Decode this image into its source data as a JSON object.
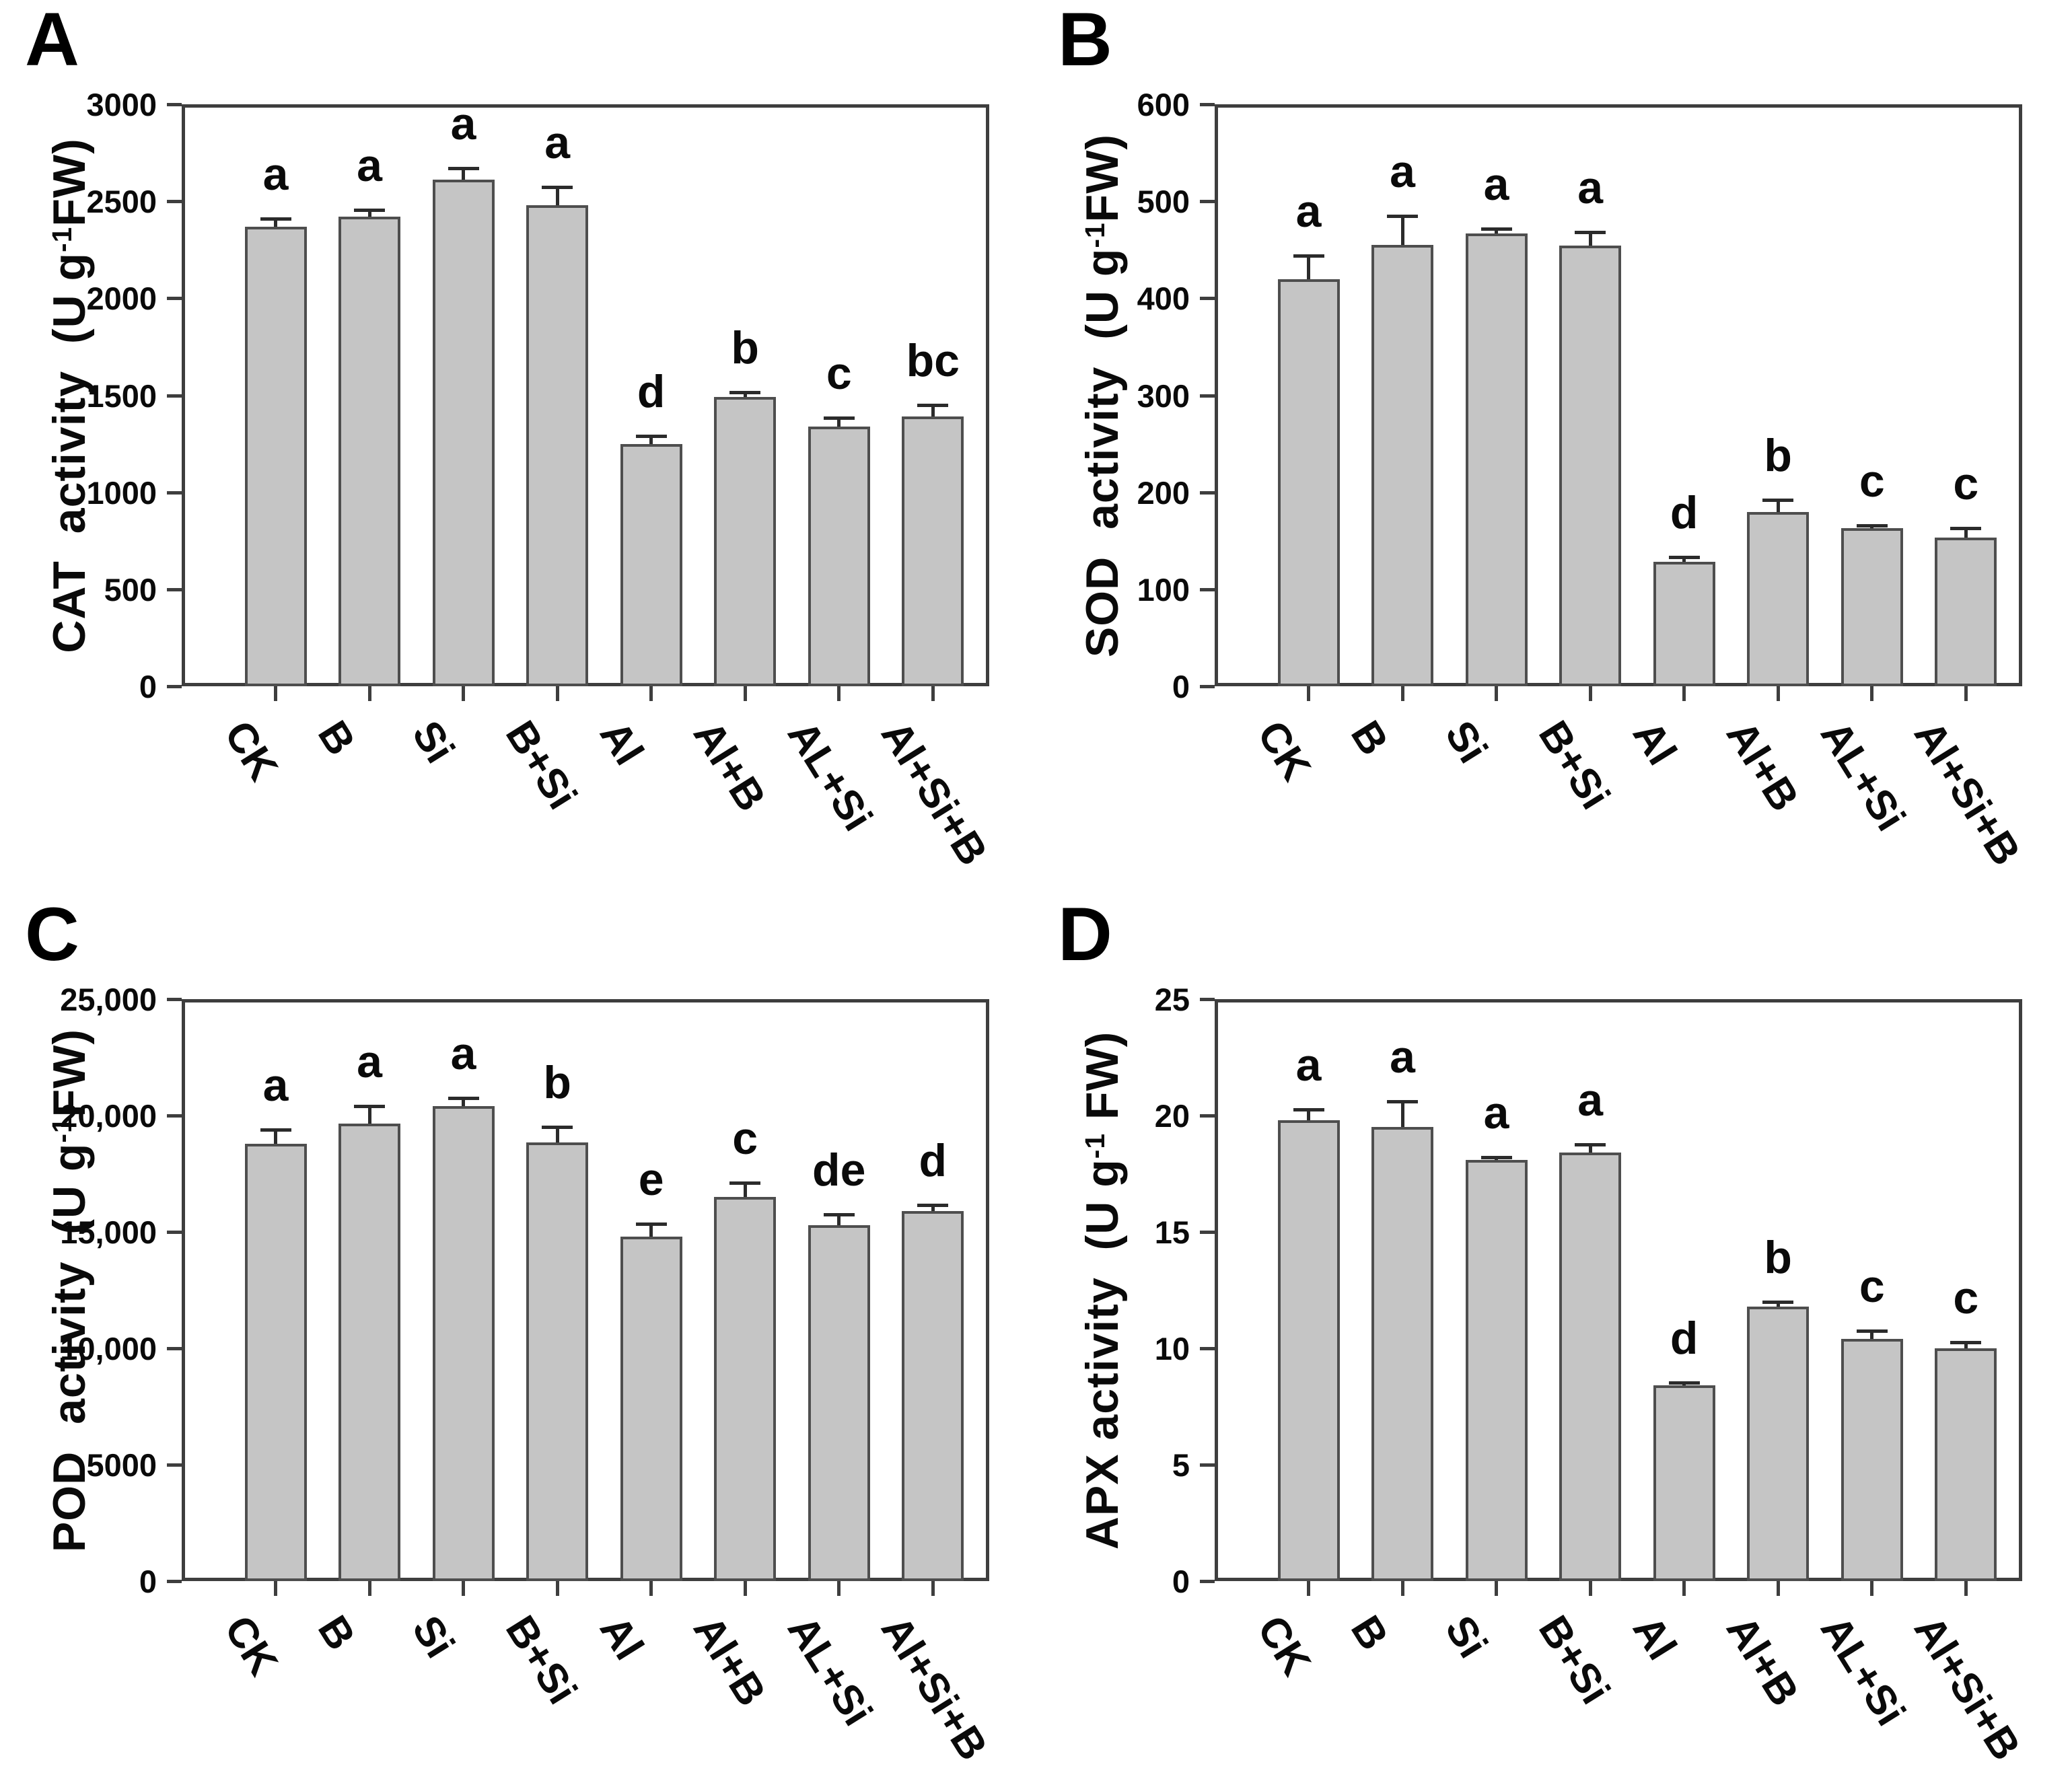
{
  "figure": {
    "background": "#ffffff",
    "bar_fill": "#c5c5c5",
    "bar_border": "#4e4e4e",
    "axis_color": "#3e3e3e",
    "text_color": "#0a0a0a"
  },
  "chart_data": [
    {
      "type": "bar",
      "panel_label": "A",
      "title": "",
      "xlabel": "",
      "ylabel_pre": "CAT  activity  (U g",
      "ylabel_sup": "-1",
      "ylabel_post": "FW)",
      "ylim": [
        0,
        3000
      ],
      "grid": false,
      "legend": false,
      "ytick_values": [
        0,
        500,
        1000,
        1500,
        2000,
        2500,
        3000
      ],
      "ytick_labels": [
        "0",
        "500",
        "1000",
        "1500",
        "2000",
        "2500",
        "3000"
      ],
      "categories": [
        "CK",
        "B",
        "Si",
        "B+Si",
        "Al",
        "Al+B",
        "AL+Si",
        "Al+Si+B"
      ],
      "values": [
        2370,
        2420,
        2610,
        2480,
        1250,
        1490,
        1340,
        1390
      ],
      "errors": [
        40,
        35,
        60,
        95,
        40,
        25,
        45,
        60
      ],
      "sig_letters": [
        "a",
        "a",
        "a",
        "a",
        "d",
        "b",
        "c",
        "bc"
      ]
    },
    {
      "type": "bar",
      "panel_label": "B",
      "title": "",
      "xlabel": "",
      "ylabel_pre": "SOD  activity  (U g",
      "ylabel_sup": "-1",
      "ylabel_post": "FW)",
      "ylim": [
        0,
        600
      ],
      "grid": false,
      "legend": false,
      "ytick_values": [
        0,
        100,
        200,
        300,
        400,
        500,
        600
      ],
      "ytick_labels": [
        "0",
        "100",
        "200",
        "300",
        "400",
        "500",
        "600"
      ],
      "categories": [
        "CK",
        "B",
        "Si",
        "B+Si",
        "Al",
        "Al+B",
        "AL+Si",
        "Al+Si+B"
      ],
      "values": [
        420,
        455,
        467,
        454,
        128,
        180,
        163,
        153
      ],
      "errors": [
        24,
        30,
        5,
        14,
        5,
        12,
        3,
        10
      ],
      "sig_letters": [
        "a",
        "a",
        "a",
        "a",
        "d",
        "b",
        "c",
        "c"
      ]
    },
    {
      "type": "bar",
      "panel_label": "C",
      "title": "",
      "xlabel": "",
      "ylabel_pre": "POD  activity  (U g",
      "ylabel_sup": "-1",
      "ylabel_post": "FW)",
      "ylim": [
        0,
        25000
      ],
      "grid": false,
      "legend": false,
      "ytick_values": [
        0,
        5000,
        10000,
        15000,
        20000,
        25000
      ],
      "ytick_labels": [
        "0",
        "5000",
        "10,000",
        "15,000",
        "20,000",
        "25,000"
      ],
      "categories": [
        "CK",
        "B",
        "Si",
        "B+Si",
        "Al",
        "Al+B",
        "AL+Si",
        "Al+Si+B"
      ],
      "values": [
        18800,
        19650,
        20400,
        18850,
        14800,
        16500,
        15300,
        15900
      ],
      "errors": [
        600,
        750,
        350,
        650,
        550,
        600,
        450,
        250
      ],
      "sig_letters": [
        "a",
        "a",
        "a",
        "b",
        "e",
        "c",
        "de",
        "d"
      ]
    },
    {
      "type": "bar",
      "panel_label": "D",
      "title": "",
      "xlabel": "",
      "ylabel_pre": "APX activity  (U g",
      "ylabel_sup": "-1",
      "ylabel_post": " FW)",
      "ylim": [
        0,
        25
      ],
      "grid": false,
      "legend": false,
      "ytick_values": [
        0,
        5,
        10,
        15,
        20,
        25
      ],
      "ytick_labels": [
        "0",
        "5",
        "10",
        "15",
        "20",
        "25"
      ],
      "categories": [
        "CK",
        "B",
        "Si",
        "B+Si",
        "Al",
        "Al+B",
        "AL+Si",
        "Al+Si+B"
      ],
      "values": [
        19.8,
        19.5,
        18.1,
        18.4,
        8.4,
        11.8,
        10.4,
        10.0
      ],
      "errors": [
        0.45,
        1.1,
        0.1,
        0.35,
        0.12,
        0.2,
        0.35,
        0.25
      ],
      "sig_letters": [
        "a",
        "a",
        "a",
        "a",
        "d",
        "b",
        "c",
        "c"
      ]
    }
  ]
}
